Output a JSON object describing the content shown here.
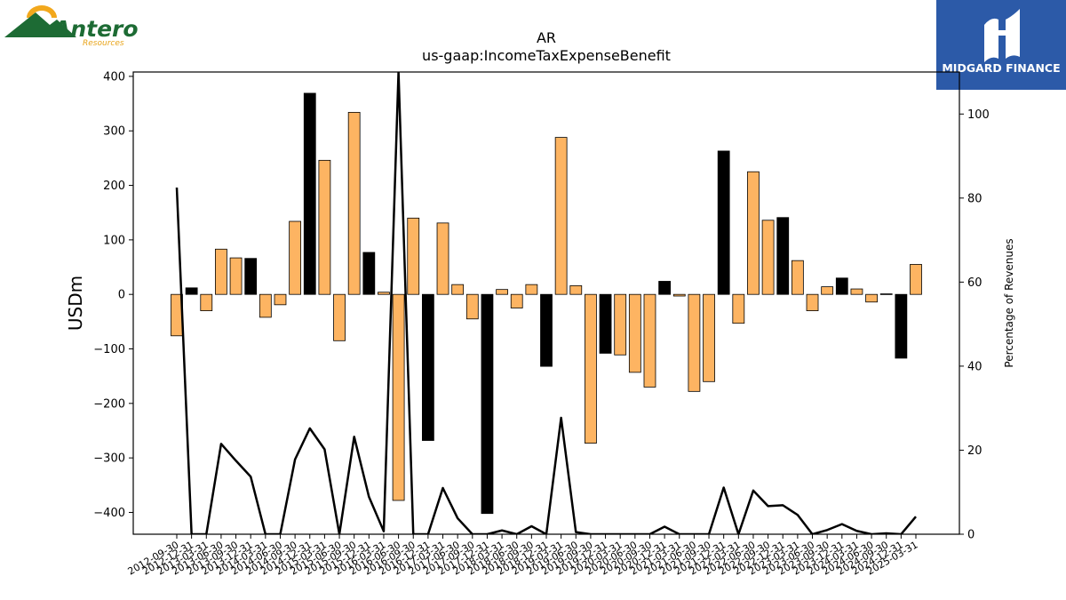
{
  "logos": {
    "left_name": "Antero",
    "left_sub": "Resources",
    "right_name": "MIDGARD FINANCE"
  },
  "chart_data": {
    "type": "bar",
    "title": "AR",
    "subtitle": "us-gaap:IncomeTaxExpenseBenefit",
    "ylabel": "USDm",
    "y2label": "Percentage of Revenues",
    "ylim": [
      -440,
      408
    ],
    "y2lim": [
      0,
      110
    ],
    "yticks": [
      400,
      300,
      200,
      100,
      0,
      -100,
      -200,
      -300,
      -400
    ],
    "y2ticks": [
      0,
      20,
      40,
      60,
      80,
      100
    ],
    "categories": [
      "2012-09-30",
      "2012-12-31",
      "2013-03-31",
      "2013-06-30",
      "2013-09-30",
      "2013-12-31",
      "2014-03-31",
      "2014-06-30",
      "2014-09-30",
      "2014-12-31",
      "2015-03-31",
      "2015-06-30",
      "2015-09-30",
      "2015-12-31",
      "2016-03-31",
      "2016-06-30",
      "2016-09-30",
      "2016-12-31",
      "2017-03-31",
      "2017-06-30",
      "2017-09-30",
      "2017-12-31",
      "2018-03-31",
      "2018-06-30",
      "2018-09-30",
      "2018-12-31",
      "2019-03-31",
      "2019-06-30",
      "2019-09-30",
      "2019-12-31",
      "2020-03-31",
      "2020-06-30",
      "2020-09-30",
      "2020-12-31",
      "2021-03-31",
      "2021-06-30",
      "2021-09-30",
      "2021-12-31",
      "2022-03-31",
      "2022-06-30",
      "2022-09-30",
      "2022-12-31",
      "2023-03-31",
      "2023-06-30",
      "2023-09-30",
      "2023-12-31",
      "2024-03-31",
      "2024-06-30",
      "2024-09-30",
      "2024-12-31",
      "2025-03-31"
    ],
    "series": [
      {
        "values": [
          -76,
          12,
          -30,
          83,
          67,
          66,
          -42,
          -19,
          134,
          369,
          246,
          -85,
          334,
          77,
          4,
          -378,
          140,
          -268,
          131,
          18,
          -45,
          -402,
          9,
          -25,
          18,
          -132,
          288,
          16,
          -273,
          -108,
          -111,
          -143,
          -170,
          24,
          -3,
          -178,
          -160,
          263,
          -53,
          225,
          136,
          141,
          62,
          -30,
          14,
          30,
          10,
          -14,
          1,
          -117,
          55
        ],
        "colors": [
          "#fdb462",
          "#000000",
          "#fdb462",
          "#fdb462",
          "#fdb462",
          "#000000",
          "#fdb462",
          "#fdb462",
          "#fdb462",
          "#000000",
          "#fdb462",
          "#fdb462",
          "#fdb462",
          "#000000",
          "#fdb462",
          "#fdb462",
          "#fdb462",
          "#000000",
          "#fdb462",
          "#fdb462",
          "#fdb462",
          "#000000",
          "#fdb462",
          "#fdb462",
          "#fdb462",
          "#000000",
          "#fdb462",
          "#fdb462",
          "#fdb462",
          "#000000",
          "#fdb462",
          "#fdb462",
          "#fdb462",
          "#000000",
          "#fdb462",
          "#fdb462",
          "#fdb462",
          "#000000",
          "#fdb462",
          "#fdb462",
          "#fdb462",
          "#000000",
          "#fdb462",
          "#fdb462",
          "#fdb462",
          "#000000",
          "#fdb462",
          "#fdb462",
          "#fdb462",
          "#000000",
          "#fdb462"
        ]
      },
      {
        "axis": "right",
        "type": "line",
        "color": "#000000",
        "values": [
          82.5,
          0,
          0,
          21.5,
          17.5,
          13.7,
          0,
          0,
          17.8,
          25.2,
          20.2,
          0,
          23.2,
          8.9,
          0.7,
          110,
          0,
          0,
          11,
          3.8,
          0,
          0,
          0.9,
          0,
          1.9,
          0,
          27.7,
          0.5,
          0,
          0,
          0,
          0,
          0,
          1.8,
          0,
          0,
          0,
          11.1,
          0,
          10.4,
          6.7,
          6.9,
          4.6,
          0,
          1,
          2.4,
          0.8,
          0,
          0.2,
          0,
          4.2
        ]
      }
    ],
    "grid": false,
    "legend": "none"
  }
}
